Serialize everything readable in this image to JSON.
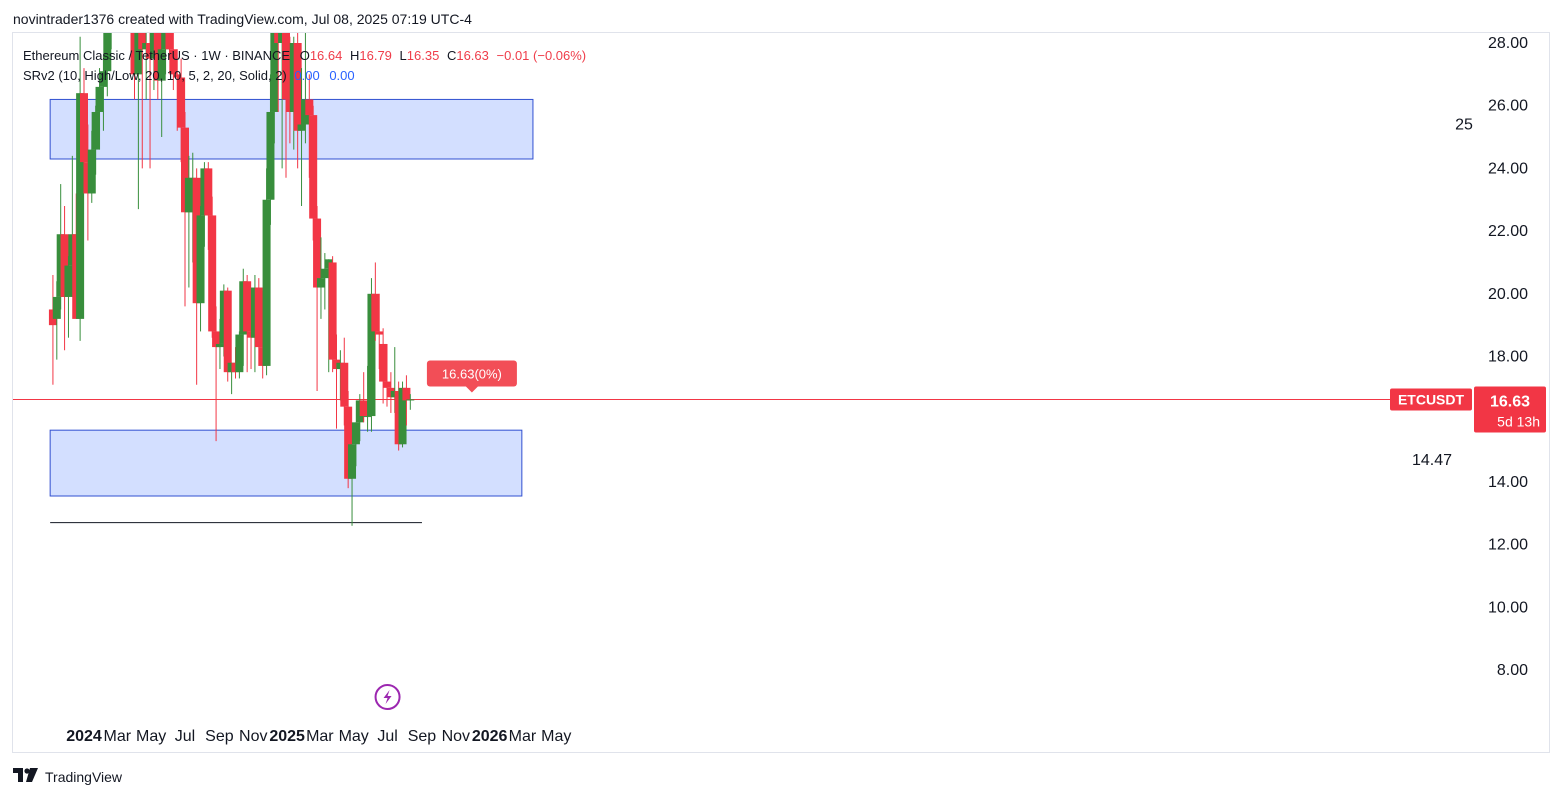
{
  "header": {
    "credit": "novintrader1376 created with TradingView.com, Jul 08, 2025 07:19 UTC-4"
  },
  "legend": {
    "symbol": "Ethereum Classic / TetherUS · 1W · BINANCE",
    "o_label": "O",
    "o_value": "16.64",
    "h_label": "H",
    "h_value": "16.79",
    "l_label": "L",
    "l_value": "16.35",
    "c_label": "C",
    "c_value": "16.63",
    "change": "−0.01 (−0.06%)",
    "indicator": "SRv2 (10, High/Low, 20, 10, 5, 2, 20, Solid, 2)",
    "ind_val1": "0.00",
    "ind_val2": "0.00"
  },
  "footer": {
    "brand": "TradingView"
  },
  "colors": {
    "up": "#388e3c",
    "down": "#f23645",
    "zone_fill": "#d3dfff",
    "zone_border": "#3050d0",
    "price_line": "#f23645",
    "flash_icon": "#9c27b0"
  },
  "chart_data": {
    "type": "candlestick",
    "symbol": "ETCUSDT",
    "interval": "1W",
    "y_axis": {
      "ticks": [
        "8.00",
        "10.00",
        "12.00",
        "14.00",
        "16.00",
        "18.00",
        "20.00",
        "22.00",
        "24.00",
        "26.00",
        "28.00"
      ]
    },
    "x_axis": {
      "ticks": [
        {
          "label": "2024",
          "date": "2024-01-01",
          "bold": true
        },
        {
          "label": "Mar",
          "date": "2024-03-01",
          "bold": false
        },
        {
          "label": "May",
          "date": "2024-05-01",
          "bold": false
        },
        {
          "label": "Jul",
          "date": "2024-07-01",
          "bold": false
        },
        {
          "label": "Sep",
          "date": "2024-09-01",
          "bold": false
        },
        {
          "label": "Nov",
          "date": "2024-11-01",
          "bold": false
        },
        {
          "label": "2025",
          "date": "2025-01-01",
          "bold": true
        },
        {
          "label": "Mar",
          "date": "2025-03-01",
          "bold": false
        },
        {
          "label": "May",
          "date": "2025-05-01",
          "bold": false
        },
        {
          "label": "Jul",
          "date": "2025-07-01",
          "bold": false
        },
        {
          "label": "Sep",
          "date": "2025-09-01",
          "bold": false
        },
        {
          "label": "Nov",
          "date": "2025-11-01",
          "bold": false
        },
        {
          "label": "2026",
          "date": "2026-01-01",
          "bold": true
        },
        {
          "label": "Mar",
          "date": "2026-03-01",
          "bold": false
        },
        {
          "label": "May",
          "date": "2026-05-01",
          "bold": false
        }
      ]
    },
    "candles": [
      {
        "date": "2023-11-06",
        "o": 19.5,
        "h": 20.6,
        "l": 17.1,
        "c": 19.0
      },
      {
        "date": "2023-11-13",
        "o": 19.2,
        "h": 20.4,
        "l": 17.9,
        "c": 19.9
      },
      {
        "date": "2023-11-20",
        "o": 19.9,
        "h": 23.5,
        "l": 19.5,
        "c": 21.9
      },
      {
        "date": "2023-11-27",
        "o": 21.9,
        "h": 22.8,
        "l": 18.2,
        "c": 19.9
      },
      {
        "date": "2023-12-04",
        "o": 19.9,
        "h": 21.2,
        "l": 18.6,
        "c": 20.9
      },
      {
        "date": "2023-12-11",
        "o": 20.9,
        "h": 24.4,
        "l": 19.9,
        "c": 21.9
      },
      {
        "date": "2023-12-18",
        "o": 21.9,
        "h": 23.2,
        "l": 19.2,
        "c": 19.2
      },
      {
        "date": "2023-12-25",
        "o": 19.2,
        "h": 28.2,
        "l": 18.5,
        "c": 26.4
      },
      {
        "date": "2024-01-01",
        "o": 26.4,
        "h": 27.2,
        "l": 23.2,
        "c": 24.2
      },
      {
        "date": "2024-01-08",
        "o": 24.2,
        "h": 25.4,
        "l": 21.7,
        "c": 23.2
      },
      {
        "date": "2024-01-15",
        "o": 23.2,
        "h": 25.2,
        "l": 22.9,
        "c": 24.6
      },
      {
        "date": "2024-01-22",
        "o": 24.6,
        "h": 26.0,
        "l": 23.8,
        "c": 25.8
      },
      {
        "date": "2024-01-29",
        "o": 25.8,
        "h": 27.2,
        "l": 24.6,
        "c": 26.6
      },
      {
        "date": "2024-02-05",
        "o": 26.6,
        "h": 27.6,
        "l": 25.2,
        "c": 27.1
      },
      {
        "date": "2024-02-12",
        "o": 27.1,
        "h": 29.5,
        "l": 26.3,
        "c": 28.9
      },
      {
        "date": "2024-02-19",
        "o": 28.9,
        "h": 30.5,
        "l": 27.8,
        "c": 29.6
      },
      {
        "date": "2024-02-26",
        "o": 29.6,
        "h": 34.0,
        "l": 29.0,
        "c": 33.2
      },
      {
        "date": "2024-03-04",
        "o": 33.2,
        "h": 38.0,
        "l": 30.5,
        "c": 34.5
      },
      {
        "date": "2024-03-11",
        "o": 34.5,
        "h": 36.5,
        "l": 31.5,
        "c": 33.5
      },
      {
        "date": "2024-03-18",
        "o": 33.5,
        "h": 34.5,
        "l": 29.0,
        "c": 31.5
      },
      {
        "date": "2024-03-25",
        "o": 31.5,
        "h": 33.5,
        "l": 28.5,
        "c": 30.5
      },
      {
        "date": "2024-04-01",
        "o": 30.5,
        "h": 31.5,
        "l": 26.2,
        "c": 27.0
      },
      {
        "date": "2024-04-08",
        "o": 27.0,
        "h": 30.0,
        "l": 22.7,
        "c": 28.5
      },
      {
        "date": "2024-04-15",
        "o": 28.5,
        "h": 29.0,
        "l": 24.0,
        "c": 27.8
      },
      {
        "date": "2024-04-22",
        "o": 27.8,
        "h": 29.5,
        "l": 26.2,
        "c": 28.0
      },
      {
        "date": "2024-04-29",
        "o": 28.0,
        "h": 29.0,
        "l": 24.0,
        "c": 27.5
      },
      {
        "date": "2024-05-06",
        "o": 27.5,
        "h": 30.5,
        "l": 26.5,
        "c": 29.0
      },
      {
        "date": "2024-05-13",
        "o": 29.0,
        "h": 29.5,
        "l": 26.2,
        "c": 26.8
      },
      {
        "date": "2024-05-20",
        "o": 26.8,
        "h": 30.0,
        "l": 25.0,
        "c": 27.8
      },
      {
        "date": "2024-05-27",
        "o": 27.8,
        "h": 30.5,
        "l": 27.0,
        "c": 30.0
      },
      {
        "date": "2024-06-03",
        "o": 30.0,
        "h": 31.0,
        "l": 27.5,
        "c": 27.8
      },
      {
        "date": "2024-06-10",
        "o": 27.8,
        "h": 28.5,
        "l": 26.5,
        "c": 27.0
      },
      {
        "date": "2024-06-17",
        "o": 27.0,
        "h": 27.8,
        "l": 25.2,
        "c": 26.9
      },
      {
        "date": "2024-06-24",
        "o": 26.9,
        "h": 27.5,
        "l": 24.2,
        "c": 25.3
      },
      {
        "date": "2024-07-01",
        "o": 25.3,
        "h": 25.8,
        "l": 19.6,
        "c": 22.6
      },
      {
        "date": "2024-07-08",
        "o": 22.6,
        "h": 24.4,
        "l": 20.2,
        "c": 23.7
      },
      {
        "date": "2024-07-15",
        "o": 22.6,
        "h": 24.5,
        "l": 21.0,
        "c": 23.7
      },
      {
        "date": "2024-07-22",
        "o": 23.7,
        "h": 24.0,
        "l": 17.1,
        "c": 19.7
      },
      {
        "date": "2024-07-29",
        "o": 19.7,
        "h": 22.8,
        "l": 18.8,
        "c": 22.5
      },
      {
        "date": "2024-08-05",
        "o": 22.5,
        "h": 24.2,
        "l": 21.5,
        "c": 24.0
      },
      {
        "date": "2024-08-12",
        "o": 24.0,
        "h": 24.2,
        "l": 21.4,
        "c": 22.5
      },
      {
        "date": "2024-08-19",
        "o": 22.5,
        "h": 23.1,
        "l": 18.6,
        "c": 18.8
      },
      {
        "date": "2024-08-26",
        "o": 18.8,
        "h": 19.6,
        "l": 15.3,
        "c": 18.3
      },
      {
        "date": "2024-09-02",
        "o": 18.3,
        "h": 19.2,
        "l": 17.6,
        "c": 18.4
      },
      {
        "date": "2024-09-09",
        "o": 18.4,
        "h": 20.3,
        "l": 18.0,
        "c": 20.1
      },
      {
        "date": "2024-09-16",
        "o": 20.1,
        "h": 20.2,
        "l": 17.2,
        "c": 17.5
      },
      {
        "date": "2024-09-23",
        "o": 17.5,
        "h": 17.8,
        "l": 16.8,
        "c": 17.8
      },
      {
        "date": "2024-09-30",
        "o": 17.8,
        "h": 18.3,
        "l": 17.3,
        "c": 17.5
      },
      {
        "date": "2024-10-07",
        "o": 17.5,
        "h": 18.8,
        "l": 17.3,
        "c": 18.7
      },
      {
        "date": "2024-10-14",
        "o": 18.7,
        "h": 20.8,
        "l": 17.7,
        "c": 20.4
      },
      {
        "date": "2024-10-21",
        "o": 20.4,
        "h": 20.6,
        "l": 17.5,
        "c": 18.8
      },
      {
        "date": "2024-10-28",
        "o": 18.8,
        "h": 19.4,
        "l": 17.6,
        "c": 18.6
      },
      {
        "date": "2024-11-04",
        "o": 18.6,
        "h": 20.6,
        "l": 17.5,
        "c": 20.2
      },
      {
        "date": "2024-11-11",
        "o": 20.2,
        "h": 20.5,
        "l": 17.7,
        "c": 18.3
      },
      {
        "date": "2024-11-18",
        "o": 18.3,
        "h": 20.1,
        "l": 17.3,
        "c": 17.7
      },
      {
        "date": "2024-11-25",
        "o": 17.7,
        "h": 24.0,
        "l": 17.4,
        "c": 23.0
      },
      {
        "date": "2024-12-02",
        "o": 23.0,
        "h": 27.0,
        "l": 22.2,
        "c": 25.8
      },
      {
        "date": "2024-12-09",
        "o": 25.8,
        "h": 29.5,
        "l": 24.8,
        "c": 28.5
      },
      {
        "date": "2024-12-16",
        "o": 28.5,
        "h": 29.2,
        "l": 25.8,
        "c": 28.0
      },
      {
        "date": "2024-12-23",
        "o": 28.0,
        "h": 30.5,
        "l": 24.0,
        "c": 29.5
      },
      {
        "date": "2024-12-30",
        "o": 28.5,
        "h": 29.5,
        "l": 23.7,
        "c": 26.2
      },
      {
        "date": "2025-01-06",
        "o": 26.2,
        "h": 28.2,
        "l": 24.8,
        "c": 25.8
      },
      {
        "date": "2025-01-13",
        "o": 25.8,
        "h": 28.2,
        "l": 24.6,
        "c": 28.0
      },
      {
        "date": "2025-01-20",
        "o": 28.0,
        "h": 28.5,
        "l": 24.0,
        "c": 25.2
      },
      {
        "date": "2025-01-27",
        "o": 25.2,
        "h": 27.2,
        "l": 22.8,
        "c": 25.4
      },
      {
        "date": "2025-02-03",
        "o": 25.4,
        "h": 28.4,
        "l": 24.8,
        "c": 26.2
      },
      {
        "date": "2025-02-10",
        "o": 26.2,
        "h": 27.0,
        "l": 23.7,
        "c": 25.7
      },
      {
        "date": "2025-02-17",
        "o": 25.7,
        "h": 26.0,
        "l": 21.7,
        "c": 22.4
      },
      {
        "date": "2025-02-24",
        "o": 22.4,
        "h": 22.8,
        "l": 16.9,
        "c": 20.2
      },
      {
        "date": "2025-03-03",
        "o": 20.2,
        "h": 21.8,
        "l": 19.2,
        "c": 20.5
      },
      {
        "date": "2025-03-10",
        "o": 20.5,
        "h": 21.3,
        "l": 19.5,
        "c": 20.8
      },
      {
        "date": "2025-03-17",
        "o": 20.8,
        "h": 21.1,
        "l": 17.5,
        "c": 21.1
      },
      {
        "date": "2025-03-24",
        "o": 21.0,
        "h": 21.2,
        "l": 17.5,
        "c": 17.9
      },
      {
        "date": "2025-03-31",
        "o": 17.9,
        "h": 18.7,
        "l": 15.7,
        "c": 17.6
      },
      {
        "date": "2025-04-07",
        "o": 17.6,
        "h": 18.2,
        "l": 16.6,
        "c": 17.8
      },
      {
        "date": "2025-04-14",
        "o": 17.8,
        "h": 18.6,
        "l": 15.8,
        "c": 16.4
      },
      {
        "date": "2025-04-21",
        "o": 16.4,
        "h": 16.9,
        "l": 13.8,
        "c": 14.1
      },
      {
        "date": "2025-04-28",
        "o": 14.1,
        "h": 15.1,
        "l": 12.6,
        "c": 15.2
      },
      {
        "date": "2025-05-05",
        "o": 15.2,
        "h": 15.9,
        "l": 14.5,
        "c": 15.9
      },
      {
        "date": "2025-05-12",
        "o": 15.9,
        "h": 16.8,
        "l": 15.3,
        "c": 16.6
      },
      {
        "date": "2025-05-19",
        "o": 16.6,
        "h": 17.5,
        "l": 15.9,
        "c": 16.1
      },
      {
        "date": "2025-05-26",
        "o": 16.1,
        "h": 17.7,
        "l": 15.6,
        "c": 16.1
      },
      {
        "date": "2025-06-02",
        "o": 16.1,
        "h": 20.5,
        "l": 15.6,
        "c": 20.0
      },
      {
        "date": "2025-06-09",
        "o": 20.0,
        "h": 21.0,
        "l": 18.5,
        "c": 18.8
      },
      {
        "date": "2025-06-16",
        "o": 18.8,
        "h": 20.0,
        "l": 17.6,
        "c": 18.7
      },
      {
        "date": "2025-06-23",
        "o": 18.4,
        "h": 18.9,
        "l": 16.5,
        "c": 17.2
      },
      {
        "date": "2025-06-30",
        "o": 17.2,
        "h": 18.4,
        "l": 16.4,
        "c": 17.0
      },
      {
        "date": "2025-07-07",
        "o": 17.0,
        "h": 17.5,
        "l": 16.2,
        "c": 16.7
      },
      {
        "date": "2025-07-14",
        "o": 16.7,
        "h": 18.3,
        "l": 16.2,
        "c": 16.9
      },
      {
        "date": "2025-07-21",
        "o": 16.9,
        "h": 17.2,
        "l": 15.0,
        "c": 15.2
      },
      {
        "date": "2025-07-28",
        "o": 15.2,
        "h": 17.2,
        "l": 15.1,
        "c": 17.0
      },
      {
        "date": "2025-08-04",
        "o": 17.0,
        "h": 17.4,
        "l": 15.8,
        "c": 16.6
      },
      {
        "date": "2025-08-11",
        "o": 16.6,
        "h": 16.8,
        "l": 16.3,
        "c": 16.63
      }
    ],
    "zones": [
      {
        "from": "2023-11-01",
        "to": "2026-03-20",
        "low": 24.3,
        "high": 26.2,
        "label": "25"
      },
      {
        "from": "2023-11-01",
        "to": "2026-02-28",
        "low": 13.55,
        "high": 15.65,
        "label": "14.47"
      }
    ],
    "support_line": {
      "from": "2023-11-01",
      "to": "2025-09-01",
      "value": 12.7
    },
    "last_price": {
      "value": 16.63,
      "symbol_label": "ETCUSDT",
      "price_label": "16.63",
      "countdown": "5d 13h"
    },
    "price_note": {
      "text": "16.63(0%)",
      "date": "2025-11-30"
    },
    "flash_icon_date": "2025-07-01"
  }
}
